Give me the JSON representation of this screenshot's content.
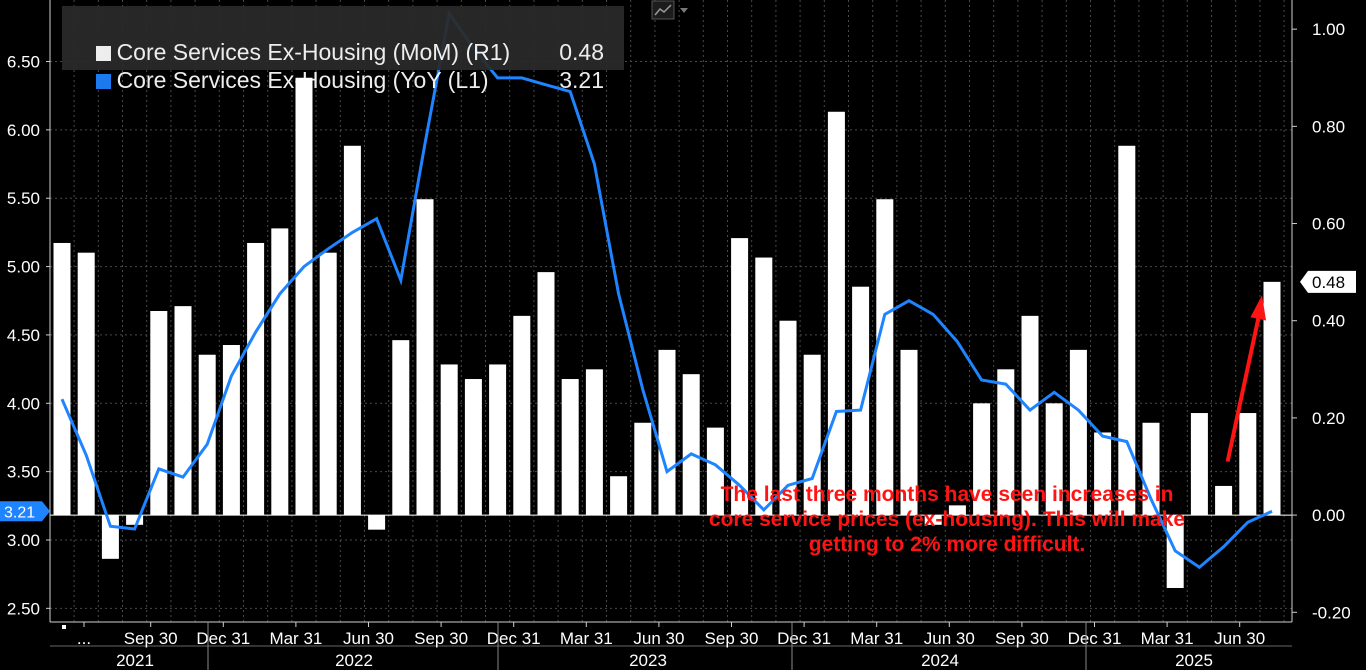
{
  "legend": {
    "mom_label": "Core Services Ex-Housing (MoM) (R1)",
    "mom_value": "0.48",
    "yoy_label": "Core Services Ex-Housing (YoY (L1)",
    "yoy_value": "3.21"
  },
  "annotation": "The last three months have seen increases in core service prices (ex-housing). This will make getting to 2% more difficult.",
  "chart_data": {
    "type": "bar+line",
    "ylim_left": [
      2.4,
      6.95
    ],
    "ylim_right": [
      -0.22,
      1.06
    ],
    "left_ticks": [
      "2.50",
      "3.00",
      "3.50",
      "4.00",
      "4.50",
      "5.00",
      "5.50",
      "6.00",
      "6.50"
    ],
    "right_ticks": [
      "-0.20",
      "0.00",
      "0.20",
      "0.40",
      "0.60",
      "0.80",
      "1.00"
    ],
    "x_tick_labels": [
      "...",
      "Sep 30",
      "Dec 31",
      "Mar 31",
      "Jun 30",
      "Sep 30",
      "Dec 31",
      "Mar 31",
      "Jun 30",
      "Sep 30",
      "Dec 31",
      "Mar 31",
      "Jun 30",
      "Sep 30",
      "Dec 31",
      "Mar 31",
      "Jun 30"
    ],
    "year_labels": [
      "2021",
      "2022",
      "2023",
      "2024",
      "2025"
    ],
    "mom_series": {
      "name": "Core Services Ex-Housing (MoM) (R1)",
      "axis": "right",
      "color": "#ffffff",
      "values": [
        0.56,
        0.54,
        -0.09,
        -0.02,
        0.42,
        0.43,
        0.33,
        0.35,
        0.56,
        0.59,
        0.9,
        0.54,
        0.76,
        -0.03,
        0.36,
        0.65,
        0.31,
        0.28,
        0.31,
        0.41,
        0.5,
        0.28,
        0.3,
        0.08,
        0.19,
        0.34,
        0.29,
        0.18,
        0.57,
        0.53,
        0.4,
        0.33,
        0.83,
        0.47,
        0.65,
        0.34,
        -0.02,
        0.02,
        0.23,
        0.3,
        0.41,
        0.23,
        0.34,
        0.17,
        0.76,
        0.19,
        -0.15,
        0.21,
        0.06,
        0.21,
        0.48
      ]
    },
    "yoy_series": {
      "name": "Core Services Ex-Housing (YoY (L1)",
      "axis": "left",
      "color": "#1e84ff",
      "values": [
        4.03,
        3.62,
        3.1,
        3.08,
        3.52,
        3.46,
        3.7,
        4.2,
        4.52,
        4.8,
        5.0,
        5.13,
        5.25,
        5.35,
        4.9,
        5.9,
        6.85,
        6.6,
        6.38,
        6.38,
        6.33,
        6.28,
        5.75,
        4.8,
        4.1,
        3.5,
        3.63,
        3.55,
        3.4,
        3.22,
        3.4,
        3.45,
        3.94,
        3.95,
        4.65,
        4.75,
        4.65,
        4.45,
        4.17,
        4.14,
        3.95,
        4.08,
        3.95,
        3.76,
        3.72,
        3.3,
        2.92,
        2.8,
        2.95,
        3.13,
        3.21
      ]
    },
    "right_marker": "0.48",
    "left_marker": "3.21",
    "grid": true
  }
}
